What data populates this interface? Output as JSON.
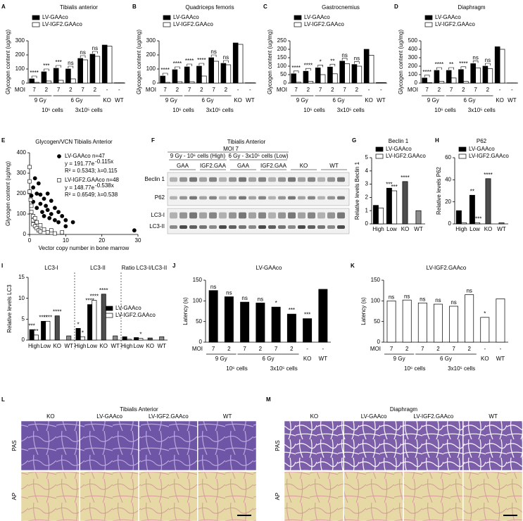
{
  "panels": {
    "letters": [
      "A",
      "B",
      "C",
      "D",
      "E",
      "F",
      "G",
      "H",
      "I",
      "J",
      "K",
      "L",
      "M"
    ]
  },
  "chart_data": [
    {
      "type": "bar",
      "title": "Tibialis anterior",
      "ylabel": "Glycogen content (ug/mg)",
      "x_prefix": "MOI",
      "categories": [
        "7",
        "2",
        "7",
        "2",
        "7",
        "2",
        "-",
        "-"
      ],
      "group_labels": [
        "9 Gy",
        "6 Gy"
      ],
      "cell_labels": [
        "10⁶ cells",
        "3x10⁵ cells"
      ],
      "end_labels": [
        "KO",
        "WT"
      ],
      "series": [
        {
          "name": "LV-GAAco",
          "color": "#000000",
          "values": [
            30,
            80,
            105,
            100,
            175,
            205,
            270,
            2
          ]
        },
        {
          "name": "LV-IGF2.GAAco",
          "color": "#ffffff",
          "values": [
            5,
            15,
            20,
            30,
            165,
            190,
            262,
            2
          ]
        }
      ],
      "annotations": [
        "****",
        "***",
        "***",
        "ns",
        "ns",
        "ns",
        null,
        null
      ],
      "ylim": [
        0,
        300
      ],
      "yticks": [
        0,
        100,
        200,
        300
      ]
    },
    {
      "type": "bar",
      "title": "Quadriceps femoris",
      "ylabel": "Glycogen content (ug/mg)",
      "x_prefix": "MOI",
      "categories": [
        "7",
        "2",
        "7",
        "2",
        "7",
        "2",
        "-",
        "-"
      ],
      "group_labels": [
        "9 Gy",
        "6 Gy"
      ],
      "cell_labels": [
        "10⁶ cells",
        "3x10⁵ cells"
      ],
      "end_labels": [
        "KO",
        "WT"
      ],
      "series": [
        {
          "name": "LV-GAAco",
          "color": "#000000",
          "values": [
            50,
            95,
            115,
            120,
            180,
            140,
            285,
            2
          ]
        },
        {
          "name": "LV-IGF2.GAAco",
          "color": "#ffffff",
          "values": [
            5,
            10,
            10,
            50,
            155,
            130,
            275,
            2
          ]
        }
      ],
      "annotations": [
        "****",
        "****",
        "****",
        "****",
        "ns",
        "ns",
        null,
        null
      ],
      "ylim": [
        0,
        300
      ],
      "yticks": [
        0,
        100,
        200,
        300
      ]
    },
    {
      "type": "bar",
      "title": "Gastrocnemius",
      "ylabel": "Glycogen content (ug/mg)",
      "x_prefix": "MOI",
      "categories": [
        "7",
        "2",
        "7",
        "2",
        "7",
        "2",
        "-",
        "-"
      ],
      "group_labels": [
        "9 Gy",
        "6 Gy"
      ],
      "cell_labels": [
        "10⁶ cells",
        "3x10⁵ cells"
      ],
      "end_labels": [
        "KO",
        "WT"
      ],
      "series": [
        {
          "name": "LV-GAAco",
          "color": "#000000",
          "values": [
            55,
            70,
            90,
            95,
            130,
            110,
            200,
            3
          ]
        },
        {
          "name": "LV-IGF2.GAAco",
          "color": "#ffffff",
          "values": [
            5,
            10,
            50,
            55,
            115,
            100,
            165,
            3
          ]
        }
      ],
      "annotations": [
        "****",
        "****",
        "*",
        "**",
        "ns",
        "ns",
        null,
        null
      ],
      "ylim": [
        0,
        250
      ],
      "yticks": [
        0,
        50,
        100,
        150,
        200,
        250
      ]
    },
    {
      "type": "bar",
      "title": "Diaphragm",
      "ylabel": "Glycogen content (ug/mg)",
      "x_prefix": "MOI",
      "categories": [
        "7",
        "2",
        "7",
        "2",
        "7",
        "2",
        "-",
        "-"
      ],
      "group_labels": [
        "9 Gy",
        "6 Gy"
      ],
      "cell_labels": [
        "10⁶ cells",
        "3x10⁵ cells"
      ],
      "end_labels": [
        "KO",
        "WT"
      ],
      "series": [
        {
          "name": "LV-GAAco",
          "color": "#000000",
          "values": [
            60,
            150,
            150,
            160,
            230,
            200,
            430,
            2
          ]
        },
        {
          "name": "LV-IGF2.GAAco",
          "color": "#ffffff",
          "values": [
            5,
            20,
            60,
            20,
            180,
            170,
            400,
            2
          ]
        }
      ],
      "annotations": [
        "****",
        "****",
        "**",
        "****",
        "ns",
        "ns",
        null,
        null
      ],
      "ylim": [
        0,
        500
      ],
      "yticks": [
        0,
        100,
        200,
        300,
        400,
        500
      ]
    },
    {
      "type": "scatter",
      "title": "Glycogen/VCN Tibialis Anterior",
      "xlabel": "Vector copy number in bone marrow",
      "ylabel": "Glycogen content (ug/mg)",
      "series": [
        {
          "name": "LV-GAAco n=47",
          "color": "#000000",
          "marker": "circle",
          "equation": "y = 191.77e",
          "exponent": "-0.115x",
          "fit": "R² = 0.5343; λ=0.115",
          "x": [
            0.5,
            1,
            1,
            1.5,
            2,
            2,
            2.5,
            3,
            3,
            3.5,
            4,
            4,
            4.5,
            5,
            5,
            5.5,
            6,
            6,
            7,
            7,
            8,
            8,
            9,
            10,
            10,
            12,
            29
          ],
          "values": [
            190,
            230,
            160,
            275,
            200,
            130,
            250,
            150,
            195,
            110,
            175,
            90,
            140,
            200,
            120,
            80,
            165,
            100,
            130,
            70,
            110,
            60,
            90,
            70,
            40,
            60,
            20
          ]
        },
        {
          "name": "LV-IGF2.GAAco n=48",
          "color": "#ffffff",
          "marker": "square",
          "equation": "y = 148.77e",
          "exponent": "-0.538x",
          "fit": "R² = 0.6549; λ=0.538",
          "x": [
            0,
            0,
            0,
            0.3,
            0.5,
            0.5,
            1,
            1,
            1,
            1.5,
            1.5,
            2,
            2,
            2.5,
            3,
            3,
            4,
            5,
            6,
            7,
            9
          ],
          "values": [
            330,
            260,
            210,
            170,
            140,
            110,
            90,
            70,
            50,
            80,
            40,
            60,
            30,
            20,
            45,
            15,
            25,
            10,
            20,
            5,
            10
          ]
        }
      ],
      "xlim": [
        0,
        30
      ],
      "xticks": [
        0,
        10,
        20,
        30
      ],
      "ylim": [
        0,
        400
      ],
      "yticks": [
        0,
        100,
        200,
        300,
        400
      ]
    },
    {
      "type": "bar",
      "title": "Beclin 1",
      "ylabel": "Relative levels Beclin 1",
      "categories": [
        "High",
        "Low",
        "KO",
        "WT"
      ],
      "series": [
        {
          "name": "LV-GAAco",
          "color": "#000000",
          "values": [
            1.4,
            2.7,
            null,
            null
          ],
          "annotations": [
            null,
            "***",
            null,
            null
          ]
        },
        {
          "name": "LV-IGF2.GAAco",
          "color": "#ffffff",
          "values": [
            1.2,
            2.5,
            null,
            null
          ],
          "annotations": [
            null,
            "***",
            null,
            null
          ]
        },
        {
          "color": "#4d4d4d",
          "values": [
            null,
            null,
            3.2,
            null
          ],
          "annotations": [
            null,
            null,
            "****",
            null
          ]
        },
        {
          "color": "#8c8c8c",
          "values": [
            null,
            null,
            null,
            1.0
          ]
        }
      ],
      "ylim": [
        0,
        5
      ],
      "yticks": [
        0,
        1,
        2,
        3,
        4,
        5
      ]
    },
    {
      "type": "bar",
      "title": "P62",
      "ylabel": "Relative levels P62",
      "categories": [
        "High",
        "Low",
        "KO",
        "WT"
      ],
      "series": [
        {
          "name": "LV-GAAco",
          "color": "#000000",
          "values": [
            12,
            26,
            null,
            null
          ],
          "annotations": [
            null,
            "**",
            null,
            null
          ]
        },
        {
          "name": "LV-IGF2.GAAco",
          "color": "#ffffff",
          "values": [
            1,
            1,
            null,
            null
          ],
          "annotations": [
            null,
            "****",
            null,
            null
          ]
        },
        {
          "color": "#4d4d4d",
          "values": [
            null,
            null,
            41,
            null
          ],
          "annotations": [
            null,
            null,
            "****",
            null
          ]
        },
        {
          "color": "#8c8c8c",
          "values": [
            null,
            null,
            null,
            1
          ]
        }
      ],
      "ylim": [
        0,
        60
      ],
      "yticks": [
        0,
        20,
        40,
        60
      ]
    },
    {
      "type": "bar",
      "ylabel": "Relative levels LC3",
      "subtitles": [
        "LC3-I",
        "LC3-II",
        "Ratio LC3-I/LC3-II"
      ],
      "categories": [
        "High",
        "Low",
        "KO",
        "WT",
        "High",
        "Low",
        "KO",
        "WT",
        "High",
        "Low",
        "KO",
        "WT"
      ],
      "series": [
        {
          "name": "LV-GAAco",
          "color": "#000000",
          "values": [
            2.5,
            4.5,
            null,
            null,
            2.8,
            8.5,
            null,
            null,
            0.8,
            0.6,
            null,
            null
          ],
          "annotations": [
            "***",
            "****",
            null,
            null,
            "*",
            "****",
            null,
            null,
            null,
            null,
            null,
            null
          ]
        },
        {
          "name": "LV-IGF2.GAAco",
          "color": "#ffffff",
          "values": [
            1.2,
            4.5,
            null,
            null,
            0.8,
            9.5,
            null,
            null,
            0.2,
            0.4,
            null,
            null
          ],
          "annotations": [
            "**",
            "****",
            null,
            null,
            "*",
            "****",
            null,
            null,
            null,
            "*",
            null,
            null
          ]
        },
        {
          "color": "#4d4d4d",
          "values": [
            null,
            null,
            5.8,
            null,
            null,
            null,
            11,
            null,
            null,
            null,
            0.5,
            null
          ],
          "annotations": [
            null,
            null,
            "****",
            null,
            null,
            null,
            "****",
            null,
            null,
            null,
            null,
            null
          ]
        },
        {
          "color": "#8c8c8c",
          "values": [
            null,
            null,
            null,
            1.0,
            null,
            null,
            null,
            1.0,
            null,
            null,
            null,
            0.8
          ]
        }
      ],
      "ylim": [
        0,
        15
      ],
      "yticks": [
        0,
        5,
        10,
        15
      ]
    },
    {
      "type": "bar",
      "title": "LV-GAAco",
      "ylabel": "Latency (s)",
      "x_prefix": "MOI",
      "categories": [
        "7",
        "2",
        "7",
        "2",
        "7",
        "2",
        "-",
        "-"
      ],
      "group_labels": [
        "9 Gy",
        "6 Gy"
      ],
      "cell_labels": [
        "10⁶ cells",
        "3x10⁵ cells"
      ],
      "end_labels": [
        "KO",
        "WT"
      ],
      "series": [
        {
          "color": "#000000",
          "values": [
            125,
            110,
            97,
            95,
            85,
            68,
            57,
            128
          ],
          "annotations": [
            "ns",
            "ns",
            "ns",
            "ns",
            "*",
            "***",
            "***",
            null
          ]
        }
      ],
      "ylim": [
        0,
        150
      ],
      "yticks": [
        0,
        50,
        100,
        150
      ]
    },
    {
      "type": "bar",
      "title": "LV-IGF2.GAAco",
      "ylabel": "Latency (s)",
      "x_prefix": "MOI",
      "categories": [
        "7",
        "2",
        "7",
        "2",
        "7",
        "2",
        "-",
        "-"
      ],
      "group_labels": [
        "9 Gy",
        "6 Gy"
      ],
      "cell_labels": [
        "10⁶ cells",
        "3x10⁵ cells"
      ],
      "end_labels": [
        "KO",
        "WT"
      ],
      "series": [
        {
          "color": "#ffffff",
          "values": [
            100,
            102,
            95,
            92,
            87,
            115,
            60,
            105
          ],
          "annotations": [
            "ns",
            "ns",
            "ns",
            "ns",
            "ns",
            "ns",
            "*",
            null
          ]
        }
      ],
      "ylim": [
        0,
        150
      ],
      "yticks": [
        0,
        50,
        100,
        150
      ]
    }
  ],
  "blot": {
    "title": "Tibialis Anterior",
    "moi": "MOI 7",
    "conditions": [
      "9 Gy - 10⁶ cells (High)",
      "6 Gy - 3x10⁵ cells (Low)"
    ],
    "lanes": [
      "GAA",
      "IGF2.GAA",
      "GAA",
      "IGF2.GAA",
      "KO",
      "WT"
    ],
    "proteins": [
      "Beclin 1",
      "P62",
      "LC3-I",
      "LC3-II"
    ]
  },
  "histology": [
    {
      "title": "Tibialis Anterior",
      "columns": [
        "KO",
        "LV-GAAco",
        "LV-IGF2.GAAco",
        "WT"
      ],
      "rows": [
        "PAS",
        "AP"
      ]
    },
    {
      "title": "Diaphragm",
      "columns": [
        "KO",
        "LV-GAAco",
        "LV-IGF2.GAAco",
        "WT"
      ],
      "rows": [
        "PAS",
        "AP"
      ]
    }
  ]
}
